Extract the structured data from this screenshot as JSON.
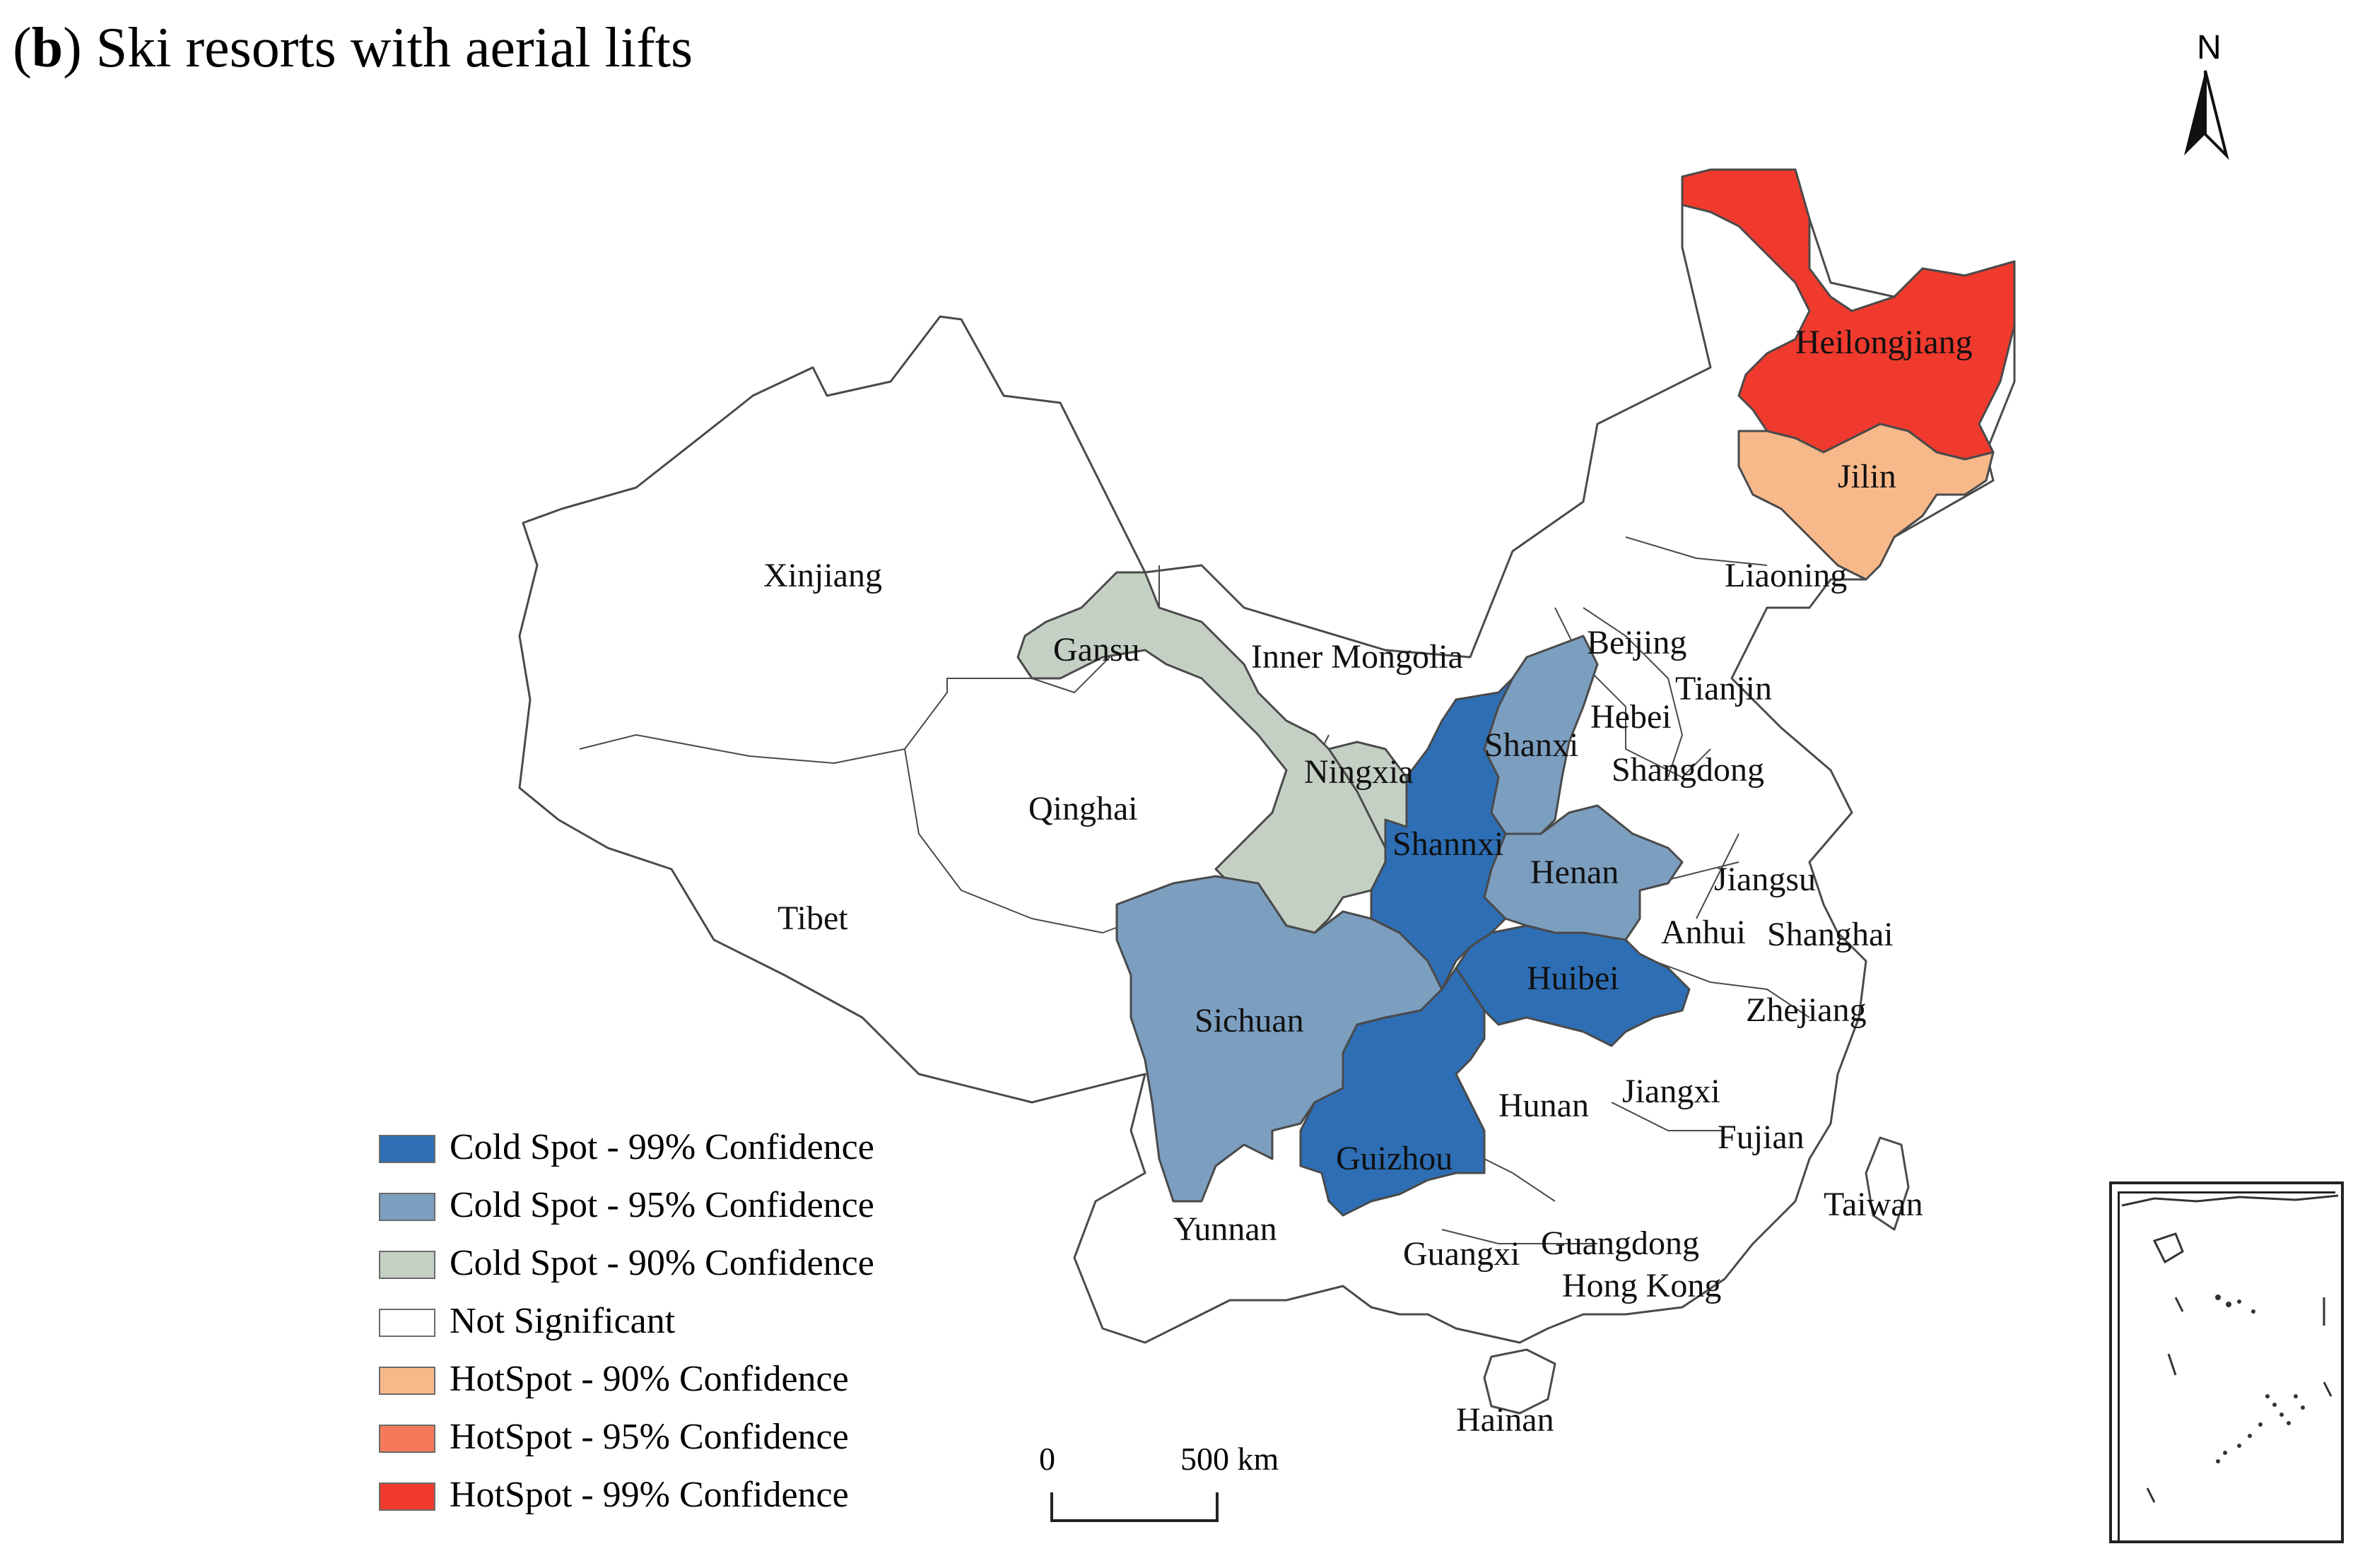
{
  "figure": {
    "title_prefix": "(",
    "title_letter": "b",
    "title_text": ") Ski resorts with aerial lifts",
    "north_label": "N"
  },
  "legend": [
    {
      "label": "Cold Spot - 99% Confidence",
      "color": "#2d6eb5"
    },
    {
      "label": "Cold Spot - 95% Confidence",
      "color": "#7c9fc0"
    },
    {
      "label": "Cold Spot - 90% Confidence",
      "color": "#c4d0c4"
    },
    {
      "label": "Not Significant",
      "color": "#ffffff"
    },
    {
      "label": "HotSpot - 90% Confidence",
      "color": "#f8b98a"
    },
    {
      "label": "HotSpot - 95% Confidence",
      "color": "#f47a59"
    },
    {
      "label": "HotSpot - 99% Confidence",
      "color": "#ef3a2d"
    }
  ],
  "scale_bar": {
    "start": "0",
    "end": "500 km"
  },
  "regions": [
    {
      "name": "Heilongjiang",
      "class": "HotSpot - 99% Confidence"
    },
    {
      "name": "Jilin",
      "class": "HotSpot - 90% Confidence"
    },
    {
      "name": "Liaoning",
      "class": "Not Significant"
    },
    {
      "name": "Xinjiang",
      "class": "Not Significant"
    },
    {
      "name": "Gansu",
      "class": "Cold Spot - 90% Confidence"
    },
    {
      "name": "Inner Mongolia",
      "class": "Not Significant"
    },
    {
      "name": "Beijing",
      "class": "Not Significant"
    },
    {
      "name": "Tianjin",
      "class": "Not Significant"
    },
    {
      "name": "Hebei",
      "class": "Not Significant"
    },
    {
      "name": "Shanxi",
      "class": "Cold Spot - 95% Confidence"
    },
    {
      "name": "Ningxia",
      "class": "Cold Spot - 90% Confidence"
    },
    {
      "name": "Shangdong",
      "class": "Not Significant"
    },
    {
      "name": "Qinghai",
      "class": "Not Significant"
    },
    {
      "name": "Shannxi",
      "class": "Cold Spot - 99% Confidence"
    },
    {
      "name": "Henan",
      "class": "Cold Spot - 95% Confidence"
    },
    {
      "name": "Jiangsu",
      "class": "Not Significant"
    },
    {
      "name": "Tibet",
      "class": "Not Significant"
    },
    {
      "name": "Anhui",
      "class": "Not Significant"
    },
    {
      "name": "Shanghai",
      "class": "Not Significant"
    },
    {
      "name": "Sichuan",
      "class": "Cold Spot - 95% Confidence"
    },
    {
      "name": "Huibei",
      "class": "Cold Spot - 99% Confidence"
    },
    {
      "name": "Zhejiang",
      "class": "Not Significant"
    },
    {
      "name": "Hunan",
      "class": "Not Significant"
    },
    {
      "name": "Jiangxi",
      "class": "Not Significant"
    },
    {
      "name": "Guizhou",
      "class": "Cold Spot - 99% Confidence"
    },
    {
      "name": "Fujian",
      "class": "Not Significant"
    },
    {
      "name": "Taiwan",
      "class": "Not Significant"
    },
    {
      "name": "Yunnan",
      "class": "Not Significant"
    },
    {
      "name": "Guangxi",
      "class": "Not Significant"
    },
    {
      "name": "Guangdong",
      "class": "Not Significant"
    },
    {
      "name": "Hong Kong",
      "class": "Not Significant"
    },
    {
      "name": "Hainan",
      "class": "Not Significant"
    }
  ]
}
